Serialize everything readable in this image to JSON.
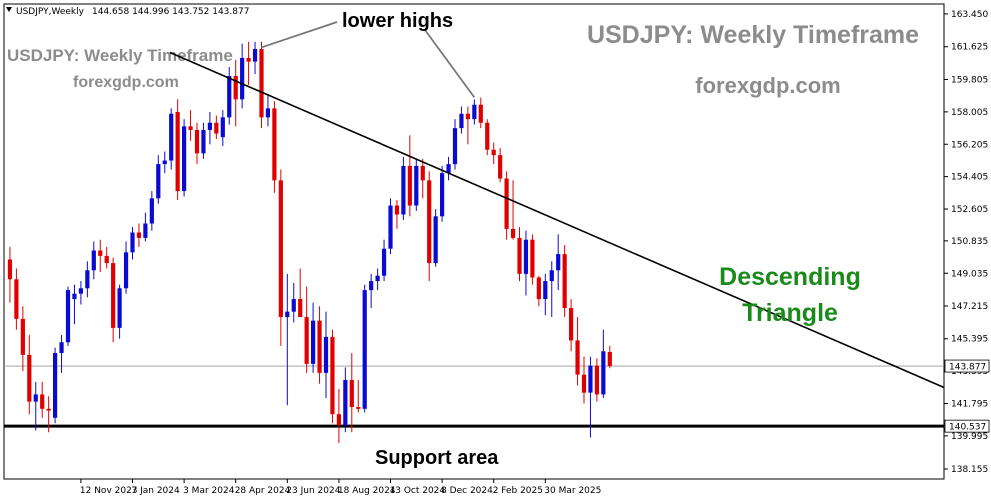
{
  "header": {
    "symbol": "USDJPY,Weekly",
    "ohlc": "144.658 144.996 143.752 143.877"
  },
  "watermarks": {
    "title_large": "USDJPY: Weekly Timeframe",
    "site_large": "forexgdp.com",
    "title_small": "USDJPY: Weekly Timeframe",
    "site_small": "forexgdp.com"
  },
  "annotations": {
    "lower_highs": "lower highs",
    "pattern_line1": "Descending",
    "pattern_line2": "Triangle",
    "support": "Support area"
  },
  "colors": {
    "bull": "#0a0ad2",
    "bear": "#e00000",
    "background": "#ffffff",
    "pattern_text": "#1a8a1a",
    "watermark": "#8c8c8c"
  },
  "price_labels": {
    "current": "143.877",
    "support": "140.537"
  },
  "chart_data": {
    "type": "candlestick",
    "title": "USDJPY: Weekly Timeframe",
    "ylim": [
      137.6,
      164.0
    ],
    "y_ticks": [
      163.45,
      161.625,
      159.805,
      158.005,
      156.205,
      154.405,
      152.605,
      150.835,
      149.035,
      147.215,
      145.395,
      143.595,
      141.795,
      139.995,
      138.155
    ],
    "x_tick_labels": [
      "12 Nov 2023",
      "7 Jan 2024",
      "3 Mar 2024",
      "28 Apr 2024",
      "23 Jun 2024",
      "18 Aug 2024",
      "13 Oct 2024",
      "8 Dec 2024",
      "2 Feb 2025",
      "30 Mar 2025"
    ],
    "support_level": 140.537,
    "current_price": 143.877,
    "trendline": {
      "from": [
        "5 Nov 2023",
        163.6
      ],
      "to": [
        "4 May 2025",
        151.5
      ]
    },
    "candles": [
      {
        "date": "20 Aug 2023",
        "o": 149.2,
        "h": 151.3,
        "l": 147.3,
        "c": 149.8
      },
      {
        "date": "27 Aug 2023",
        "o": 149.8,
        "h": 150.5,
        "l": 147.4,
        "c": 148.7
      },
      {
        "date": "3 Sep 2023",
        "o": 148.7,
        "h": 149.3,
        "l": 145.9,
        "c": 146.5
      },
      {
        "date": "10 Sep 2023",
        "o": 146.5,
        "h": 147.2,
        "l": 143.6,
        "c": 144.5
      },
      {
        "date": "17 Sep 2023",
        "o": 144.5,
        "h": 145.6,
        "l": 141.2,
        "c": 141.9
      },
      {
        "date": "24 Sep 2023",
        "o": 141.9,
        "h": 143.0,
        "l": 140.3,
        "c": 142.3
      },
      {
        "date": "1 Oct 2023",
        "o": 142.3,
        "h": 143.0,
        "l": 141.0,
        "c": 141.5
      },
      {
        "date": "8 Oct 2023",
        "o": 141.5,
        "h": 142.2,
        "l": 140.2,
        "c": 141.4
      },
      {
        "date": "15 Oct 2023",
        "o": 141.0,
        "h": 144.9,
        "l": 140.7,
        "c": 144.6
      },
      {
        "date": "22 Oct 2023",
        "o": 144.6,
        "h": 145.6,
        "l": 143.5,
        "c": 145.2
      },
      {
        "date": "29 Oct 2023",
        "o": 145.2,
        "h": 148.3,
        "l": 145.0,
        "c": 148.1
      },
      {
        "date": "5 Nov 2023",
        "o": 147.6,
        "h": 148.4,
        "l": 146.2,
        "c": 147.9
      },
      {
        "date": "12 Nov 2023",
        "o": 147.9,
        "h": 148.6,
        "l": 147.3,
        "c": 148.2
      },
      {
        "date": "19 Nov 2023",
        "o": 148.2,
        "h": 149.7,
        "l": 147.7,
        "c": 149.2
      },
      {
        "date": "26 Nov 2023",
        "o": 149.2,
        "h": 150.8,
        "l": 148.7,
        "c": 150.3
      },
      {
        "date": "3 Dec 2023",
        "o": 150.3,
        "h": 150.9,
        "l": 149.1,
        "c": 150.0
      },
      {
        "date": "10 Dec 2023",
        "o": 150.0,
        "h": 150.5,
        "l": 149.3,
        "c": 149.6
      },
      {
        "date": "17 Dec 2023",
        "o": 149.6,
        "h": 149.9,
        "l": 145.2,
        "c": 146.0
      },
      {
        "date": "24 Dec 2023",
        "o": 146.0,
        "h": 148.4,
        "l": 145.4,
        "c": 148.2
      },
      {
        "date": "31 Dec 2023",
        "o": 148.2,
        "h": 150.8,
        "l": 147.9,
        "c": 150.2
      },
      {
        "date": "7 Jan 2024",
        "o": 150.2,
        "h": 151.6,
        "l": 149.8,
        "c": 151.3
      },
      {
        "date": "14 Jan 2024",
        "o": 151.3,
        "h": 151.8,
        "l": 150.5,
        "c": 151.0
      },
      {
        "date": "21 Jan 2024",
        "o": 151.0,
        "h": 152.4,
        "l": 150.8,
        "c": 151.8
      },
      {
        "date": "28 Jan 2024",
        "o": 151.8,
        "h": 153.6,
        "l": 151.4,
        "c": 153.2
      },
      {
        "date": "4 Feb 2024",
        "o": 153.2,
        "h": 155.6,
        "l": 152.9,
        "c": 155.1
      },
      {
        "date": "11 Feb 2024",
        "o": 155.1,
        "h": 155.8,
        "l": 154.6,
        "c": 155.3
      },
      {
        "date": "18 Feb 2024",
        "o": 155.3,
        "h": 158.2,
        "l": 154.8,
        "c": 157.9
      },
      {
        "date": "25 Feb 2024",
        "o": 158.0,
        "h": 158.7,
        "l": 153.1,
        "c": 153.6
      },
      {
        "date": "3 Mar 2024",
        "o": 153.6,
        "h": 157.6,
        "l": 153.3,
        "c": 157.2
      },
      {
        "date": "10 Mar 2024",
        "o": 157.2,
        "h": 158.1,
        "l": 156.4,
        "c": 157.0
      },
      {
        "date": "17 Mar 2024",
        "o": 157.0,
        "h": 157.4,
        "l": 155.1,
        "c": 155.7
      },
      {
        "date": "24 Mar 2024",
        "o": 155.7,
        "h": 157.4,
        "l": 155.4,
        "c": 157.0
      },
      {
        "date": "31 Mar 2024",
        "o": 157.0,
        "h": 158.0,
        "l": 156.2,
        "c": 157.4
      },
      {
        "date": "7 Apr 2024",
        "o": 157.4,
        "h": 157.8,
        "l": 156.5,
        "c": 156.8
      },
      {
        "date": "14 Apr 2024",
        "o": 156.6,
        "h": 158.1,
        "l": 156.1,
        "c": 157.7
      },
      {
        "date": "21 Apr 2024",
        "o": 157.7,
        "h": 160.5,
        "l": 157.3,
        "c": 160.0
      },
      {
        "date": "28 Apr 2024",
        "o": 160.0,
        "h": 160.9,
        "l": 157.2,
        "c": 158.7
      },
      {
        "date": "5 May 2024",
        "o": 158.7,
        "h": 161.8,
        "l": 158.2,
        "c": 161.0
      },
      {
        "date": "12 May 2024",
        "o": 161.0,
        "h": 161.9,
        "l": 159.5,
        "c": 160.8
      },
      {
        "date": "19 May 2024",
        "o": 160.8,
        "h": 161.9,
        "l": 160.1,
        "c": 161.5
      },
      {
        "date": "26 May 2024",
        "o": 161.5,
        "h": 161.9,
        "l": 157.1,
        "c": 157.7
      },
      {
        "date": "2 Jun 2024",
        "o": 157.7,
        "h": 159.0,
        "l": 157.2,
        "c": 158.2
      },
      {
        "date": "9 Jun 2024",
        "o": 158.2,
        "h": 158.6,
        "l": 153.5,
        "c": 154.2
      },
      {
        "date": "16 Jun 2024",
        "o": 154.2,
        "h": 154.8,
        "l": 145.0,
        "c": 146.6
      },
      {
        "date": "23 Jun 2024",
        "o": 146.6,
        "h": 149.0,
        "l": 141.7,
        "c": 146.9
      },
      {
        "date": "30 Jun 2024",
        "o": 146.9,
        "h": 148.5,
        "l": 146.3,
        "c": 147.6
      },
      {
        "date": "7 Jul 2024",
        "o": 147.6,
        "h": 149.3,
        "l": 146.8,
        "c": 146.6
      },
      {
        "date": "14 Jul 2024",
        "o": 146.6,
        "h": 148.3,
        "l": 143.5,
        "c": 144.0
      },
      {
        "date": "21 Jul 2024",
        "o": 144.0,
        "h": 147.4,
        "l": 143.5,
        "c": 146.4
      },
      {
        "date": "28 Jul 2024",
        "o": 146.4,
        "h": 147.2,
        "l": 142.9,
        "c": 143.5
      },
      {
        "date": "4 Aug 2024",
        "o": 143.5,
        "h": 146.9,
        "l": 142.1,
        "c": 145.5
      },
      {
        "date": "11 Aug 2024",
        "o": 145.5,
        "h": 145.9,
        "l": 140.7,
        "c": 141.2
      },
      {
        "date": "18 Aug 2024",
        "o": 141.2,
        "h": 142.6,
        "l": 139.6,
        "c": 140.6
      },
      {
        "date": "25 Aug 2024",
        "o": 140.6,
        "h": 143.8,
        "l": 140.2,
        "c": 143.1
      },
      {
        "date": "1 Sep 2024",
        "o": 143.1,
        "h": 144.6,
        "l": 140.2,
        "c": 141.6
      },
      {
        "date": "8 Sep 2024",
        "o": 141.6,
        "h": 143.1,
        "l": 141.3,
        "c": 141.5
      },
      {
        "date": "15 Sep 2024",
        "o": 141.5,
        "h": 148.4,
        "l": 141.3,
        "c": 148.1
      },
      {
        "date": "22 Sep 2024",
        "o": 148.1,
        "h": 149.0,
        "l": 147.1,
        "c": 148.6
      },
      {
        "date": "29 Sep 2024",
        "o": 148.6,
        "h": 149.3,
        "l": 148.1,
        "c": 148.9
      },
      {
        "date": "6 Oct 2024",
        "o": 148.9,
        "h": 150.9,
        "l": 148.6,
        "c": 150.4
      },
      {
        "date": "13 Oct 2024",
        "o": 150.4,
        "h": 153.2,
        "l": 150.1,
        "c": 152.8
      },
      {
        "date": "20 Oct 2024",
        "o": 152.8,
        "h": 153.1,
        "l": 151.5,
        "c": 152.3
      },
      {
        "date": "27 Oct 2024",
        "o": 152.3,
        "h": 155.5,
        "l": 152.0,
        "c": 155.0
      },
      {
        "date": "3 Nov 2024",
        "o": 155.0,
        "h": 156.7,
        "l": 152.2,
        "c": 152.8
      },
      {
        "date": "10 Nov 2024",
        "o": 152.8,
        "h": 155.4,
        "l": 152.5,
        "c": 155.0
      },
      {
        "date": "17 Nov 2024",
        "o": 155.0,
        "h": 155.4,
        "l": 153.2,
        "c": 154.2
      },
      {
        "date": "24 Nov 2024",
        "o": 154.2,
        "h": 154.7,
        "l": 148.6,
        "c": 149.6
      },
      {
        "date": "1 Dec 2024",
        "o": 149.6,
        "h": 152.6,
        "l": 149.4,
        "c": 152.2
      },
      {
        "date": "8 Dec 2024",
        "o": 152.2,
        "h": 155.0,
        "l": 151.9,
        "c": 154.6
      },
      {
        "date": "15 Dec 2024",
        "o": 154.6,
        "h": 155.5,
        "l": 154.2,
        "c": 155.1
      },
      {
        "date": "22 Dec 2024",
        "o": 155.1,
        "h": 157.6,
        "l": 154.8,
        "c": 157.1
      },
      {
        "date": "29 Dec 2024",
        "o": 157.1,
        "h": 158.3,
        "l": 156.8,
        "c": 157.9
      },
      {
        "date": "5 Jan 2025",
        "o": 157.9,
        "h": 158.3,
        "l": 156.2,
        "c": 157.6
      },
      {
        "date": "12 Jan 2025",
        "o": 157.6,
        "h": 158.7,
        "l": 157.3,
        "c": 158.4
      },
      {
        "date": "19 Jan 2025",
        "o": 158.4,
        "h": 158.8,
        "l": 157.1,
        "c": 157.4
      },
      {
        "date": "26 Jan 2025",
        "o": 157.4,
        "h": 157.6,
        "l": 155.6,
        "c": 155.9
      },
      {
        "date": "2 Feb 2025",
        "o": 155.9,
        "h": 156.3,
        "l": 155.1,
        "c": 155.6
      },
      {
        "date": "9 Feb 2025",
        "o": 155.6,
        "h": 156.0,
        "l": 154.1,
        "c": 154.3
      },
      {
        "date": "16 Feb 2025",
        "o": 154.3,
        "h": 154.7,
        "l": 150.9,
        "c": 151.5
      },
      {
        "date": "23 Feb 2025",
        "o": 151.5,
        "h": 154.2,
        "l": 150.9,
        "c": 151.0
      },
      {
        "date": "2 Mar 2025",
        "o": 151.0,
        "h": 151.6,
        "l": 148.6,
        "c": 149.0
      },
      {
        "date": "9 Mar 2025",
        "o": 149.0,
        "h": 151.4,
        "l": 147.8,
        "c": 150.9
      },
      {
        "date": "16 Mar 2025",
        "o": 150.9,
        "h": 151.2,
        "l": 148.4,
        "c": 148.8
      },
      {
        "date": "23 Mar 2025",
        "o": 148.8,
        "h": 148.9,
        "l": 147.2,
        "c": 147.6
      },
      {
        "date": "30 Mar 2025",
        "o": 147.6,
        "h": 149.0,
        "l": 146.7,
        "c": 148.6
      },
      {
        "date": "6 Apr 2025",
        "o": 148.6,
        "h": 149.7,
        "l": 146.6,
        "c": 149.2
      },
      {
        "date": "13 Apr 2025",
        "o": 149.2,
        "h": 151.2,
        "l": 148.1,
        "c": 150.1
      },
      {
        "date": "20 Apr 2025",
        "o": 150.1,
        "h": 150.6,
        "l": 146.6,
        "c": 147.1
      },
      {
        "date": "27 Apr 2025",
        "o": 147.1,
        "h": 147.6,
        "l": 144.7,
        "c": 145.3
      },
      {
        "date": "4 May 2025",
        "o": 145.3,
        "h": 146.6,
        "l": 142.8,
        "c": 143.4
      },
      {
        "date": "11 May 2025",
        "o": 143.4,
        "h": 144.4,
        "l": 141.8,
        "c": 142.4
      },
      {
        "date": "18 May 2025",
        "o": 142.4,
        "h": 144.4,
        "l": 139.9,
        "c": 143.9
      },
      {
        "date": "25 May 2025",
        "o": 143.9,
        "h": 144.3,
        "l": 141.9,
        "c": 142.3
      },
      {
        "date": "1 Jun 2025",
        "o": 142.3,
        "h": 145.9,
        "l": 142.1,
        "c": 144.7
      },
      {
        "date": "8 Jun 2025",
        "o": 144.658,
        "h": 144.996,
        "l": 143.752,
        "c": 143.877
      }
    ]
  }
}
